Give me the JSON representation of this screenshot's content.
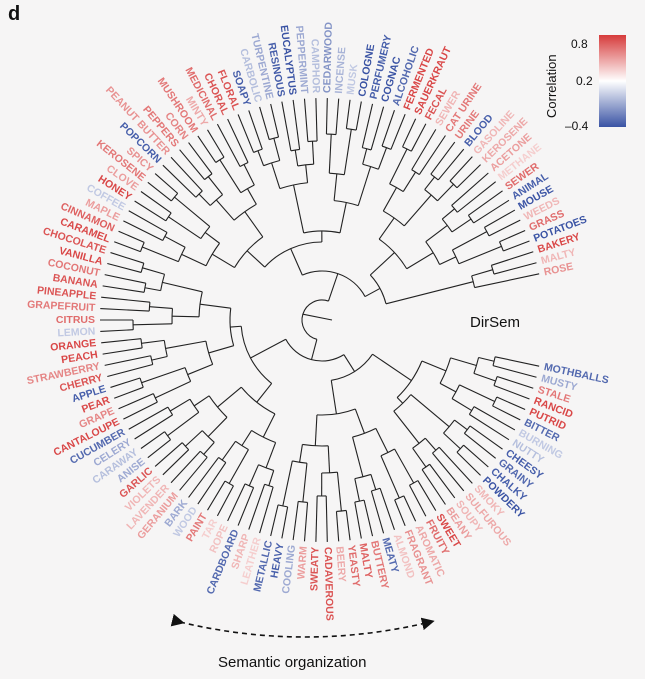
{
  "panel_label": "d",
  "center_label": "DirSem",
  "bottom_label": "Semantic organization",
  "colorbar": {
    "title": "Correlation",
    "ticks": [
      "0.8",
      "0.2",
      "–0.4"
    ],
    "colors": {
      "high": "#d63b3b",
      "mid": "#ffffff",
      "low": "#3a53a4"
    }
  },
  "chart_data": {
    "type": "dendrogram",
    "layout": "circular",
    "leaves": [
      {
        "label": "MOTHBALLS",
        "correlation": -0.3
      },
      {
        "label": "MUSTY",
        "correlation": 0.0
      },
      {
        "label": "STALE",
        "correlation": 0.55
      },
      {
        "label": "RANCID",
        "correlation": 0.75
      },
      {
        "label": "PUTRID",
        "correlation": 0.75
      },
      {
        "label": "BITTER",
        "correlation": -0.3
      },
      {
        "label": "BURNING",
        "correlation": 0.15
      },
      {
        "label": "NUTTY",
        "correlation": 0.1
      },
      {
        "label": "CHEESY",
        "correlation": -0.35
      },
      {
        "label": "GRAINY",
        "correlation": -0.3
      },
      {
        "label": "CHALKY",
        "correlation": -0.35
      },
      {
        "label": "POWDERY",
        "correlation": -0.4
      },
      {
        "label": "SMOKY",
        "correlation": 0.3
      },
      {
        "label": "SULFUROUS",
        "correlation": 0.35
      },
      {
        "label": "SOUPY",
        "correlation": 0.3
      },
      {
        "label": "BEANY",
        "correlation": 0.4
      },
      {
        "label": "SWEET",
        "correlation": 0.75
      },
      {
        "label": "FRUITY",
        "correlation": 0.6
      },
      {
        "label": "AROMATIC",
        "correlation": 0.35
      },
      {
        "label": "FRAGRANT",
        "correlation": 0.45
      },
      {
        "label": "ALMOND",
        "correlation": 0.25
      },
      {
        "label": "MEATY",
        "correlation": -0.3
      },
      {
        "label": "BUTTERY",
        "correlation": 0.55
      },
      {
        "label": "MALTY",
        "correlation": 0.65
      },
      {
        "label": "YEASTY",
        "correlation": 0.6
      },
      {
        "label": "BEERY",
        "correlation": 0.35
      },
      {
        "label": "CADAVEROUS",
        "correlation": 0.7
      },
      {
        "label": "SWEATY",
        "correlation": 0.7
      },
      {
        "label": "WARM",
        "correlation": 0.4
      },
      {
        "label": "COOLING",
        "correlation": 0.0
      },
      {
        "label": "HEAVY",
        "correlation": -0.35
      },
      {
        "label": "METALLIC",
        "correlation": -0.3
      },
      {
        "label": "LEATHER",
        "correlation": 0.2
      },
      {
        "label": "SHARP",
        "correlation": 0.3
      },
      {
        "label": "CARDBOARD",
        "correlation": -0.3
      },
      {
        "label": "ROPE",
        "correlation": 0.25
      },
      {
        "label": "TAR",
        "correlation": 0.2
      },
      {
        "label": "PAINT",
        "correlation": 0.55
      },
      {
        "label": "WOOD",
        "correlation": 0.15
      },
      {
        "label": "BARK",
        "correlation": 0.0
      },
      {
        "label": "GERANIUM",
        "correlation": 0.4
      },
      {
        "label": "LAVENDER",
        "correlation": 0.3
      },
      {
        "label": "VIOLETS",
        "correlation": 0.3
      },
      {
        "label": "GARLIC",
        "correlation": 0.7
      },
      {
        "label": "ANISE",
        "correlation": 0.0
      },
      {
        "label": "CARAWAY",
        "correlation": 0.1
      },
      {
        "label": "CELERY",
        "correlation": 0.0
      },
      {
        "label": "CUCUMBER",
        "correlation": -0.3
      },
      {
        "label": "CANTALOUPE",
        "correlation": 0.75
      },
      {
        "label": "GRAPE",
        "correlation": 0.5
      },
      {
        "label": "PEAR",
        "correlation": 0.75
      },
      {
        "label": "APPLE",
        "correlation": -0.35
      },
      {
        "label": "CHERRY",
        "correlation": 0.7
      },
      {
        "label": "STRAWBERRY",
        "correlation": 0.5
      },
      {
        "label": "PEACH",
        "correlation": 0.75
      },
      {
        "label": "ORANGE",
        "correlation": 0.75
      },
      {
        "label": "LEMON",
        "correlation": 0.15
      },
      {
        "label": "CITRUS",
        "correlation": 0.6
      },
      {
        "label": "GRAPEFRUIT",
        "correlation": 0.55
      },
      {
        "label": "PINEAPPLE",
        "correlation": 0.7
      },
      {
        "label": "BANANA",
        "correlation": 0.7
      },
      {
        "label": "COCONUT",
        "correlation": 0.55
      },
      {
        "label": "VANILLA",
        "correlation": 0.75
      },
      {
        "label": "CHOCOLATE",
        "correlation": 0.7
      },
      {
        "label": "CARAMEL",
        "correlation": 0.75
      },
      {
        "label": "CINNAMON",
        "correlation": 0.65
      },
      {
        "label": "MAPLE",
        "correlation": 0.4
      },
      {
        "label": "COFFEE",
        "correlation": 0.15
      },
      {
        "label": "HONEY",
        "correlation": 0.75
      },
      {
        "label": "CLOVE",
        "correlation": 0.4
      },
      {
        "label": "KEROSENE",
        "correlation": 0.55
      },
      {
        "label": "SPICY",
        "correlation": 0.45
      },
      {
        "label": "POPCORN",
        "correlation": -0.35
      },
      {
        "label": "PEANUT BUTTER",
        "correlation": 0.45
      },
      {
        "label": "PEPPERS",
        "correlation": 0.55
      },
      {
        "label": "CORN",
        "correlation": 0.5
      },
      {
        "label": "MUSHROOM",
        "correlation": 0.55
      },
      {
        "label": "MINTY",
        "correlation": 0.35
      },
      {
        "label": "MEDICINAL",
        "correlation": 0.6
      },
      {
        "label": "CHORAL",
        "correlation": 0.7
      },
      {
        "label": "FLORAL",
        "correlation": 0.7
      },
      {
        "label": "SOAPY",
        "correlation": -0.35
      },
      {
        "label": "CARBOLIC",
        "correlation": 0.1
      },
      {
        "label": "TURPENTINE",
        "correlation": 0.0
      },
      {
        "label": "RESINOUS",
        "correlation": -0.35
      },
      {
        "label": "EUCALYPTUS",
        "correlation": -0.4
      },
      {
        "label": "PEPPERMINT",
        "correlation": 0.0
      },
      {
        "label": "CAMPHOR",
        "correlation": 0.1
      },
      {
        "label": "CEDARWOOD",
        "correlation": -0.1
      },
      {
        "label": "INCENSE",
        "correlation": 0.05
      },
      {
        "label": "MUSK",
        "correlation": 0.15
      },
      {
        "label": "COLOGNE",
        "correlation": -0.4
      },
      {
        "label": "PERFUMERY",
        "correlation": -0.35
      },
      {
        "label": "COGNAC",
        "correlation": -0.4
      },
      {
        "label": "ALCOHOLIC",
        "correlation": -0.3
      },
      {
        "label": "FERMENTED",
        "correlation": 0.75
      },
      {
        "label": "SAUERKRAUT",
        "correlation": 0.75
      },
      {
        "label": "FECAL",
        "correlation": 0.7
      },
      {
        "label": "SEWER",
        "correlation": 0.3
      },
      {
        "label": "CAT URINE",
        "correlation": 0.55
      },
      {
        "label": "URINE",
        "correlation": 0.55
      },
      {
        "label": "BLOOD",
        "correlation": -0.35
      },
      {
        "label": "GASOLINE",
        "correlation": 0.3
      },
      {
        "label": "KEROSENE",
        "correlation": 0.35
      },
      {
        "label": "ACETONE",
        "correlation": 0.4
      },
      {
        "label": "METHANE",
        "correlation": 0.2
      },
      {
        "label": "SEWER",
        "correlation": 0.6
      },
      {
        "label": "ANIMAL",
        "correlation": -0.35
      },
      {
        "label": "MOUSE",
        "correlation": -0.4
      },
      {
        "label": "WEEDS",
        "correlation": 0.3
      },
      {
        "label": "GRASS",
        "correlation": 0.6
      },
      {
        "label": "POTATOES",
        "correlation": -0.4
      },
      {
        "label": "BAKERY",
        "correlation": 0.75
      },
      {
        "label": "MALTY",
        "correlation": 0.3
      },
      {
        "label": "ROSE",
        "correlation": 0.45
      }
    ]
  }
}
